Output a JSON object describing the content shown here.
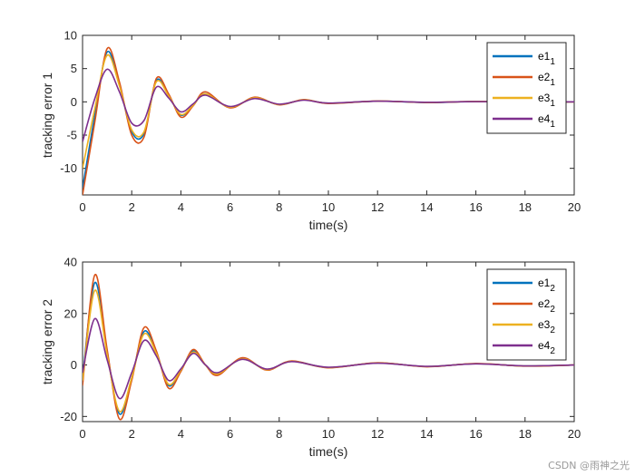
{
  "watermark": "CSDN @雨神之光",
  "chart_data": [
    {
      "type": "line",
      "xlabel": "time(s)",
      "ylabel": "tracking error 1",
      "xlim": [
        0,
        20
      ],
      "ylim": [
        -14,
        10
      ],
      "xticks": [
        0,
        2,
        4,
        6,
        8,
        10,
        12,
        14,
        16,
        18,
        20
      ],
      "yticks": [
        -10,
        -5,
        0,
        5,
        10
      ],
      "grid": false,
      "legend_position": "top-right",
      "series": [
        {
          "name": "e1",
          "sub": "1",
          "color": "#0072BD",
          "x": [
            0,
            0.5,
            1.0,
            1.5,
            2.0,
            2.5,
            3.0,
            3.5,
            4.0,
            4.5,
            5.0,
            6,
            7,
            8,
            9,
            10,
            12,
            14,
            16,
            18,
            20
          ],
          "y": [
            -13,
            -2,
            7.5,
            2.5,
            -4.5,
            -4.8,
            3.2,
            1.0,
            -2,
            -0.5,
            1.2,
            -0.8,
            0.6,
            -0.4,
            0.3,
            -0.2,
            0.1,
            -0.1,
            0.05,
            -0.03,
            0
          ]
        },
        {
          "name": "e2",
          "sub": "1",
          "color": "#D95319",
          "x": [
            0,
            0.5,
            1.0,
            1.5,
            2.0,
            2.5,
            3.0,
            3.5,
            4.0,
            4.5,
            5.0,
            6,
            7,
            8,
            9,
            10,
            12,
            14,
            16,
            18,
            20
          ],
          "y": [
            -14,
            -3,
            8,
            3,
            -5,
            -5.3,
            3.5,
            1.2,
            -2.3,
            -0.6,
            1.5,
            -0.9,
            0.7,
            -0.45,
            0.35,
            -0.25,
            0.12,
            -0.1,
            0.06,
            -0.03,
            0
          ]
        },
        {
          "name": "e3",
          "sub": "1",
          "color": "#EDB120",
          "x": [
            0,
            0.5,
            1.0,
            1.5,
            2.0,
            2.5,
            3.0,
            3.5,
            4.0,
            4.5,
            5.0,
            6,
            7,
            8,
            9,
            10,
            12,
            14,
            16,
            18,
            20
          ],
          "y": [
            -10,
            -1,
            7,
            2.4,
            -4.2,
            -4.5,
            3.0,
            0.9,
            -1.9,
            -0.5,
            1.2,
            -0.8,
            0.6,
            -0.4,
            0.3,
            -0.2,
            0.1,
            -0.08,
            0.05,
            -0.03,
            0
          ]
        },
        {
          "name": "e4",
          "sub": "1",
          "color": "#7E2F8E",
          "x": [
            0,
            0.5,
            1.0,
            1.5,
            2.0,
            2.5,
            3.0,
            3.5,
            4.0,
            4.5,
            5.0,
            6,
            7,
            8,
            9,
            10,
            12,
            14,
            16,
            18,
            20
          ],
          "y": [
            -6,
            0.5,
            4.9,
            1.5,
            -3.2,
            -2.8,
            2.2,
            0.6,
            -1.5,
            -0.3,
            1.0,
            -0.7,
            0.5,
            -0.35,
            0.25,
            -0.18,
            0.1,
            -0.06,
            0.04,
            -0.02,
            0
          ]
        }
      ]
    },
    {
      "type": "line",
      "xlabel": "time(s)",
      "ylabel": "tracking error 2",
      "xlim": [
        0,
        20
      ],
      "ylim": [
        -22,
        40
      ],
      "xticks": [
        0,
        2,
        4,
        6,
        8,
        10,
        12,
        14,
        16,
        18,
        20
      ],
      "yticks": [
        -20,
        0,
        20,
        40
      ],
      "grid": false,
      "legend_position": "top-right",
      "series": [
        {
          "name": "e1",
          "sub": "2",
          "color": "#0072BD",
          "x": [
            0,
            0.5,
            1.0,
            1.5,
            2.0,
            2.5,
            3.0,
            3.5,
            4.0,
            4.5,
            5.0,
            5.5,
            6.5,
            7.5,
            8.5,
            10,
            12,
            14,
            16,
            18,
            20
          ],
          "y": [
            -5,
            32,
            5,
            -19,
            -5,
            13,
            5,
            -8,
            -2,
            5.5,
            0,
            -3.5,
            2.5,
            -1.8,
            1.5,
            -1,
            0.8,
            -0.6,
            0.5,
            -0.4,
            0
          ]
        },
        {
          "name": "e2",
          "sub": "2",
          "color": "#D95319",
          "x": [
            0,
            0.5,
            1.0,
            1.5,
            2.0,
            2.5,
            3.0,
            3.5,
            4.0,
            4.5,
            5.0,
            5.5,
            6.5,
            7.5,
            8.5,
            10,
            12,
            14,
            16,
            18,
            20
          ],
          "y": [
            -8,
            35,
            6,
            -21,
            -6,
            14.5,
            5.5,
            -9,
            -2.5,
            6,
            0,
            -4,
            2.8,
            -2,
            1.6,
            -1.1,
            0.9,
            -0.7,
            0.55,
            -0.45,
            0
          ]
        },
        {
          "name": "e3",
          "sub": "2",
          "color": "#EDB120",
          "x": [
            0,
            0.5,
            1.0,
            1.5,
            2.0,
            2.5,
            3.0,
            3.5,
            4.0,
            4.5,
            5.0,
            5.5,
            6.5,
            7.5,
            8.5,
            10,
            12,
            14,
            16,
            18,
            20
          ],
          "y": [
            -6,
            29,
            4,
            -18,
            -5,
            12,
            4.5,
            -7.5,
            -2,
            5,
            0,
            -3.5,
            2.4,
            -1.8,
            1.4,
            -1,
            0.8,
            -0.6,
            0.5,
            -0.4,
            0
          ]
        },
        {
          "name": "e4",
          "sub": "2",
          "color": "#7E2F8E",
          "x": [
            0,
            0.5,
            1.0,
            1.5,
            2.0,
            2.5,
            3.0,
            3.5,
            4.0,
            4.5,
            5.0,
            5.5,
            6.5,
            7.5,
            8.5,
            10,
            12,
            14,
            16,
            18,
            20
          ],
          "y": [
            -3,
            18,
            2,
            -13,
            -3,
            9.5,
            3.5,
            -6,
            -1.5,
            4.5,
            0,
            -3,
            2.2,
            -1.6,
            1.3,
            -0.9,
            0.7,
            -0.55,
            0.45,
            -0.35,
            0
          ]
        }
      ]
    }
  ]
}
